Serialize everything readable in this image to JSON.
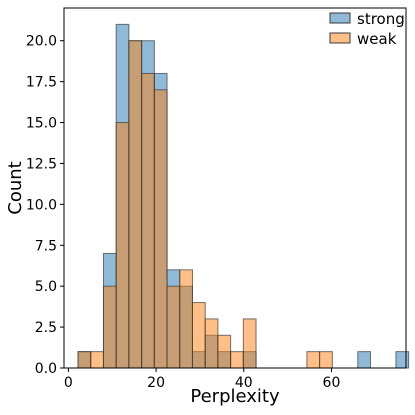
{
  "chart_data": {
    "type": "bar",
    "subtype": "overlapping-histogram",
    "title": "",
    "xlabel": "Perplexity",
    "ylabel": "Count",
    "xlim": [
      -1,
      77
    ],
    "ylim": [
      0,
      22
    ],
    "x_ticks": [
      0,
      20,
      40,
      60
    ],
    "y_ticks": [
      0.0,
      2.5,
      5.0,
      7.5,
      10.0,
      12.5,
      15.0,
      17.5,
      20.0
    ],
    "y_tick_labels": [
      "0.0",
      "2.5",
      "5.0",
      "7.5",
      "10.0",
      "12.5",
      "15.0",
      "17.5",
      "20.0"
    ],
    "bin_edges": [
      2.2,
      5.1,
      8.0,
      10.9,
      13.8,
      16.7,
      19.6,
      22.5,
      25.4,
      28.3,
      31.2,
      34.1,
      37.0,
      39.9,
      42.8,
      45.7,
      48.6,
      51.5,
      54.4,
      57.3,
      60.2,
      63.1,
      66.0,
      68.9,
      71.8,
      74.7,
      77.6
    ],
    "series": [
      {
        "name": "strong",
        "color": "#1f77b4",
        "values": [
          1,
          0,
          7,
          21,
          20,
          20,
          18,
          6,
          5,
          1,
          2,
          1,
          0,
          1,
          0,
          0,
          0,
          0,
          0,
          0,
          0,
          0,
          1,
          0,
          0,
          1
        ]
      },
      {
        "name": "weak",
        "color": "#ff7f0e",
        "values": [
          1,
          1,
          5,
          15,
          20,
          18,
          17,
          5,
          6,
          4,
          3,
          2,
          1,
          3,
          0,
          0,
          0,
          0,
          1,
          1,
          0,
          0,
          0,
          0,
          0,
          0
        ]
      }
    ],
    "grid": false,
    "legend_position": "top-right"
  }
}
